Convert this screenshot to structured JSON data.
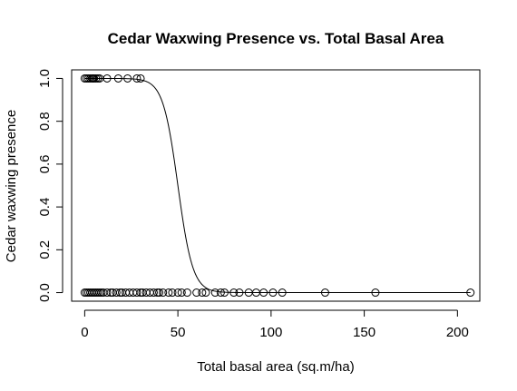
{
  "chart_data": {
    "type": "scatter",
    "title": "Cedar Waxwing Presence vs. Total Basal Area",
    "xlabel": "Total basal area (sq.m/ha)",
    "ylabel": "Cedar waxwing presence",
    "xlim": [
      -7,
      212
    ],
    "ylim": [
      -0.04,
      1.04
    ],
    "xticks": [
      0,
      50,
      100,
      150,
      200
    ],
    "xtick_labels": [
      "0",
      "50",
      "100",
      "150",
      "200"
    ],
    "yticks": [
      0,
      0.2,
      0.4,
      0.6,
      0.8,
      1.0
    ],
    "ytick_labels": [
      "0.0",
      "0.2",
      "0.4",
      "0.6",
      "0.8",
      "1.0"
    ],
    "grid": false,
    "legend": "none",
    "series": [
      {
        "marker": "open-circle",
        "points": [
          [
            0,
            1
          ],
          [
            1,
            1
          ],
          [
            2,
            1
          ],
          [
            3,
            1
          ],
          [
            4,
            1
          ],
          [
            4.5,
            1
          ],
          [
            5,
            1
          ],
          [
            6,
            1
          ],
          [
            7,
            1
          ],
          [
            8,
            1
          ],
          [
            12,
            1
          ],
          [
            18,
            1
          ],
          [
            23,
            1
          ],
          [
            28,
            1
          ],
          [
            30,
            1
          ],
          [
            0,
            0
          ],
          [
            1,
            0
          ],
          [
            2,
            0
          ],
          [
            3,
            0
          ],
          [
            4,
            0
          ],
          [
            5,
            0
          ],
          [
            6,
            0
          ],
          [
            7,
            0
          ],
          [
            8,
            0
          ],
          [
            9,
            0
          ],
          [
            10,
            0
          ],
          [
            12,
            0
          ],
          [
            14,
            0
          ],
          [
            15,
            0
          ],
          [
            17,
            0
          ],
          [
            19,
            0
          ],
          [
            20,
            0
          ],
          [
            22,
            0
          ],
          [
            24,
            0
          ],
          [
            26,
            0
          ],
          [
            28,
            0
          ],
          [
            30,
            0
          ],
          [
            31,
            0
          ],
          [
            33,
            0
          ],
          [
            35,
            0
          ],
          [
            37,
            0
          ],
          [
            39,
            0
          ],
          [
            40,
            0
          ],
          [
            42,
            0
          ],
          [
            45,
            0
          ],
          [
            47,
            0
          ],
          [
            50,
            0
          ],
          [
            52,
            0
          ],
          [
            55,
            0
          ],
          [
            60,
            0
          ],
          [
            63,
            0
          ],
          [
            65,
            0
          ],
          [
            70,
            0
          ],
          [
            73,
            0
          ],
          [
            75,
            0
          ],
          [
            80,
            0
          ],
          [
            83,
            0
          ],
          [
            88,
            0
          ],
          [
            92,
            0
          ],
          [
            96,
            0
          ],
          [
            101,
            0
          ],
          [
            106,
            0
          ],
          [
            129,
            0
          ],
          [
            156,
            0
          ],
          [
            207,
            0
          ]
        ]
      },
      {
        "type": "line",
        "description": "fitted logistic curve",
        "intercept": 12.5,
        "slope": -0.25,
        "x_range": [
          0,
          207
        ]
      }
    ]
  }
}
